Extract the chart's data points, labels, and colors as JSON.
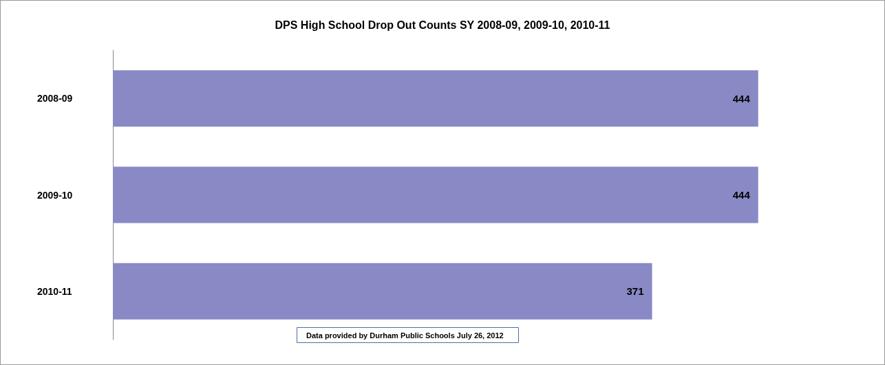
{
  "chart_data": {
    "type": "bar",
    "orientation": "horizontal",
    "title": "DPS High School Drop Out Counts SY 2008-09, 2009-10, 2010-11",
    "categories": [
      "2008-09",
      "2009-10",
      "2010-11"
    ],
    "values": [
      444,
      444,
      371
    ],
    "color": "#8889c5",
    "data_labels": true,
    "annotations": [
      "Data provided by Durham Public Schools July 26, 2012"
    ]
  }
}
